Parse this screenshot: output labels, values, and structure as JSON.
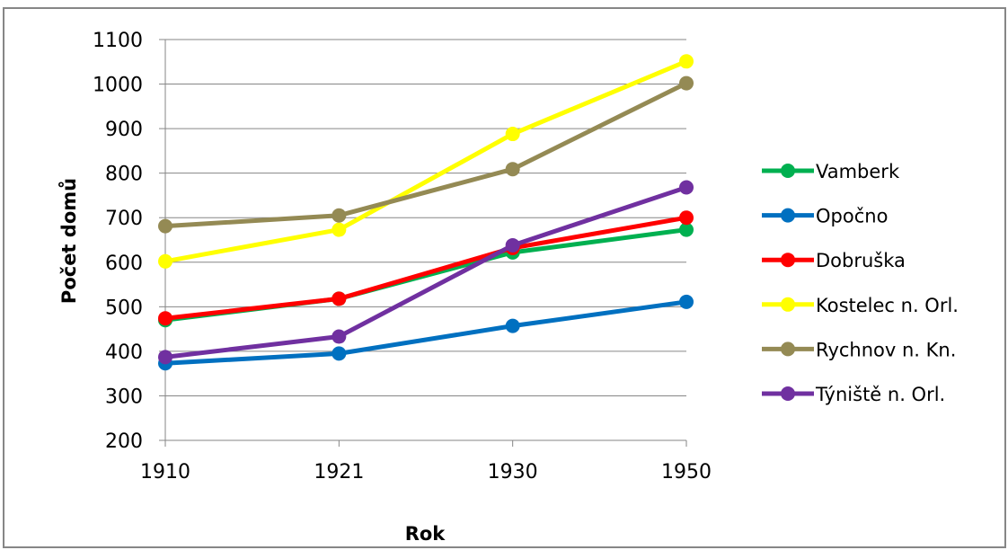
{
  "chart_data": {
    "type": "line",
    "title": "",
    "xlabel": "Rok",
    "ylabel": "Počet domů",
    "categories": [
      "1910",
      "1921",
      "1930",
      "1950"
    ],
    "ylim": [
      200,
      1100
    ],
    "yticks": [
      200,
      300,
      400,
      500,
      600,
      700,
      800,
      900,
      1000,
      1100
    ],
    "grid": true,
    "legend_position": "right",
    "series": [
      {
        "name": "Vamberk",
        "color": "#00b050",
        "values": [
          470,
          518,
          622,
          673
        ]
      },
      {
        "name": "Opočno",
        "color": "#0070c0",
        "values": [
          373,
          395,
          457,
          511
        ]
      },
      {
        "name": "Dobruška",
        "color": "#ff0000",
        "values": [
          474,
          518,
          632,
          700
        ]
      },
      {
        "name": "Kostelec n. Orl.",
        "color": "#ffff00",
        "values": [
          602,
          673,
          888,
          1051
        ]
      },
      {
        "name": "Rychnov n. Kn.",
        "color": "#948a54",
        "values": [
          681,
          705,
          809,
          1002
        ]
      },
      {
        "name": "Týniště n. Orl.",
        "color": "#7030a0",
        "values": [
          387,
          433,
          638,
          768
        ]
      }
    ]
  }
}
